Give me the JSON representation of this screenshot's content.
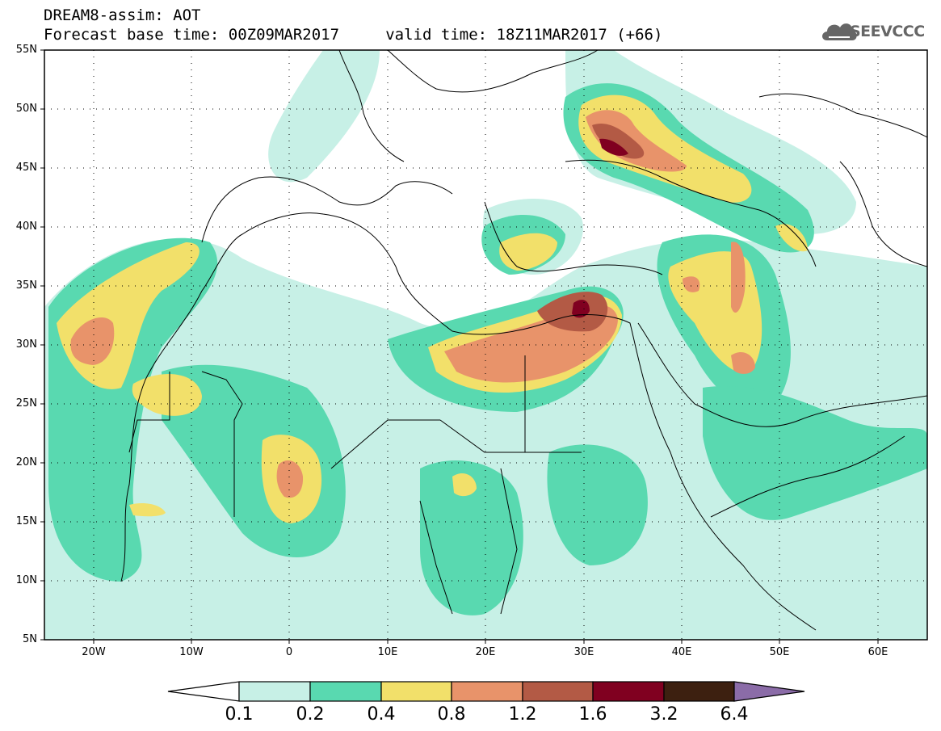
{
  "header": {
    "title_line1": "DREAM8-assim: AOT",
    "title_line2": "Forecast base time: 00Z09MAR2017     valid time: 18Z11MAR2017 (+66)",
    "logo_text": "SEEVCCC",
    "logo_icon": "cloud-logo-icon"
  },
  "map": {
    "lat_ticks": [
      "55N",
      "50N",
      "45N",
      "40N",
      "35N",
      "30N",
      "25N",
      "20N",
      "15N",
      "10N",
      "5N"
    ],
    "lon_ticks": [
      "20W",
      "10W",
      "0",
      "10E",
      "20E",
      "30E",
      "40E",
      "50E",
      "60E"
    ],
    "lon_range": [
      -25,
      65
    ],
    "lat_range": [
      5,
      55
    ]
  },
  "colorbar": {
    "levels": [
      "0.1",
      "0.2",
      "0.4",
      "0.8",
      "1.2",
      "1.6",
      "3.2",
      "6.4"
    ],
    "colors": [
      "#c7f0e6",
      "#59d9b0",
      "#f2e06a",
      "#e8936a",
      "#b35a45",
      "#800020",
      "#3d2010",
      "#8b6ca8"
    ],
    "under_color": "#ffffff"
  }
}
